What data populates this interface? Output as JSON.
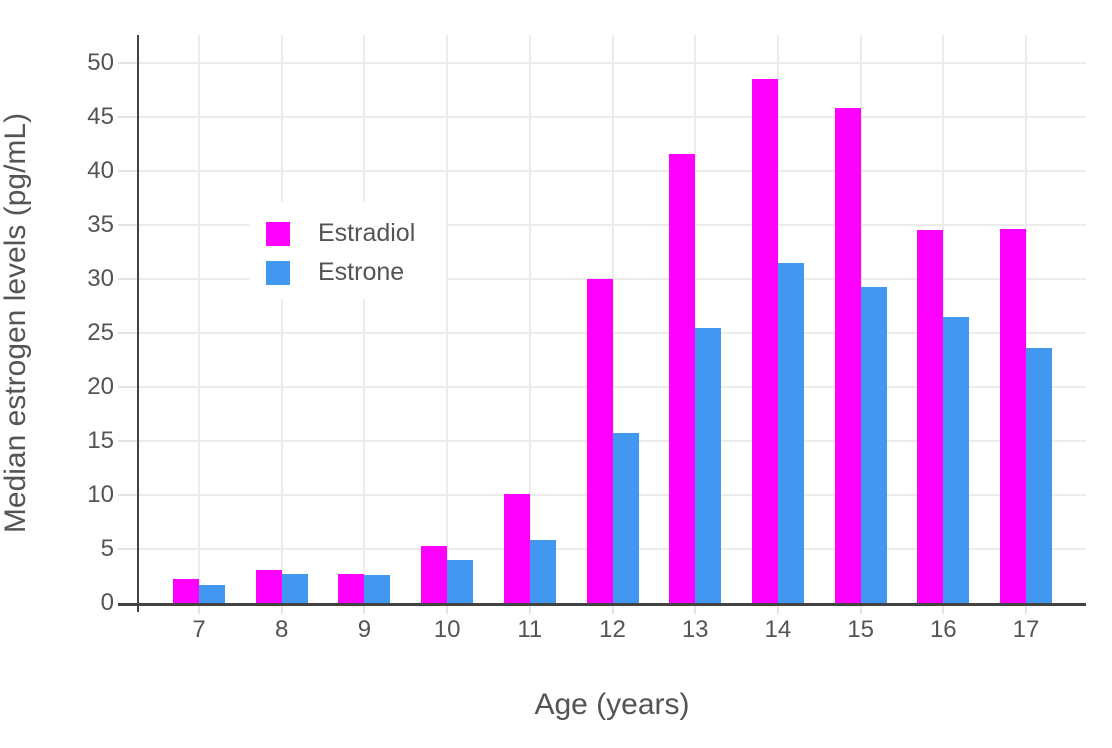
{
  "chart_data": {
    "type": "bar",
    "title": "",
    "xlabel": "Age (years)",
    "ylabel": "Median estrogen levels (pg/mL)",
    "categories": [
      "7",
      "8",
      "9",
      "10",
      "11",
      "12",
      "13",
      "14",
      "15",
      "16",
      "17"
    ],
    "series": [
      {
        "name": "Estradiol",
        "color": "#FF00FF",
        "values": [
          2.2,
          3.1,
          2.7,
          5.3,
          10.1,
          30.0,
          41.6,
          48.5,
          45.8,
          34.5,
          34.6
        ]
      },
      {
        "name": "Estrone",
        "color": "#4298F0",
        "values": [
          1.7,
          2.7,
          2.6,
          4.0,
          5.8,
          15.7,
          25.5,
          31.5,
          29.3,
          26.5,
          23.6
        ]
      }
    ],
    "y_ticks": [
      0,
      5,
      10,
      15,
      20,
      25,
      30,
      35,
      40,
      45,
      50
    ],
    "ylim": [
      0,
      52.6
    ],
    "grid": true,
    "legend_position": "inside-top-left",
    "colors": {
      "background": "#FFFFFF",
      "grid": "#ECECEC",
      "axis": "#424242",
      "text": "#545454"
    }
  }
}
